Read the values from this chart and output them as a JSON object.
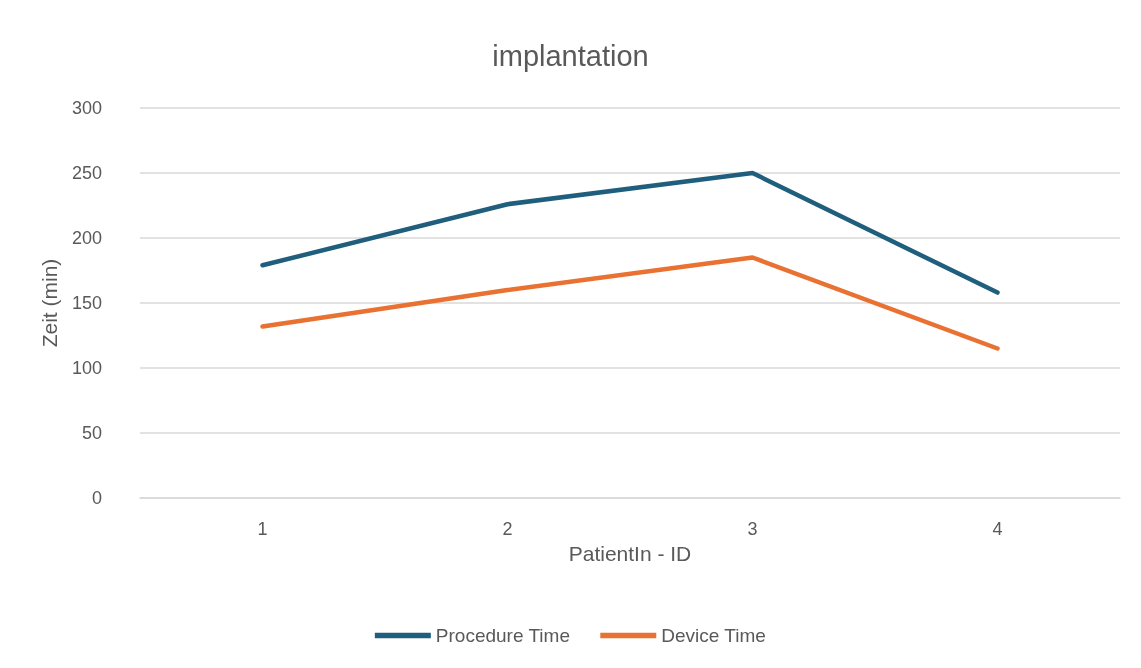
{
  "chart_data": {
    "type": "line",
    "title": "implantation",
    "xlabel": "PatientIn - ID",
    "ylabel": "Zeit (min)",
    "categories": [
      "1",
      "2",
      "3",
      "4"
    ],
    "series": [
      {
        "name": "Procedure Time",
        "color": "#1f5f7d",
        "values": [
          179,
          226,
          250,
          158
        ]
      },
      {
        "name": "Device Time",
        "color": "#e97132",
        "values": [
          132,
          160,
          185,
          115
        ]
      }
    ],
    "ylim": [
      0,
      300
    ],
    "yticks": [
      0,
      50,
      100,
      150,
      200,
      250,
      300
    ],
    "grid": "y",
    "legend": "bottom",
    "marker": "none",
    "line_style": "solid"
  }
}
